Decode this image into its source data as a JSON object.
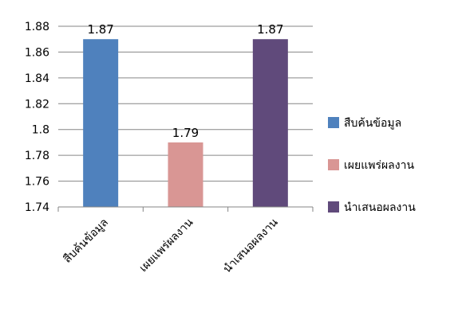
{
  "chart_data": {
    "type": "bar",
    "title": "",
    "xlabel": "",
    "ylabel": "",
    "categories": [
      "สืบค้นข้อมูล",
      "เผยแพร่ผลงาน",
      "นำเสนอผลงาน"
    ],
    "values": [
      1.87,
      1.79,
      1.87
    ],
    "value_labels": [
      "1.87",
      "1.79",
      "1.87"
    ],
    "colors": [
      "#4f81bd",
      "#d99694",
      "#604a7b"
    ],
    "ylim": [
      1.74,
      1.88
    ],
    "yticks": [
      "1.74",
      "1.76",
      "1.78",
      "1.8",
      "1.82",
      "1.84",
      "1.86",
      "1.88"
    ],
    "grid": true,
    "legend_position": "right",
    "legend": [
      {
        "label": "สืบค้นข้อมูล",
        "color": "#4f81bd"
      },
      {
        "label": "เผยแพร่ผลงาน",
        "color": "#d99694"
      },
      {
        "label": "นำเสนอผลงาน",
        "color": "#604a7b"
      }
    ]
  }
}
